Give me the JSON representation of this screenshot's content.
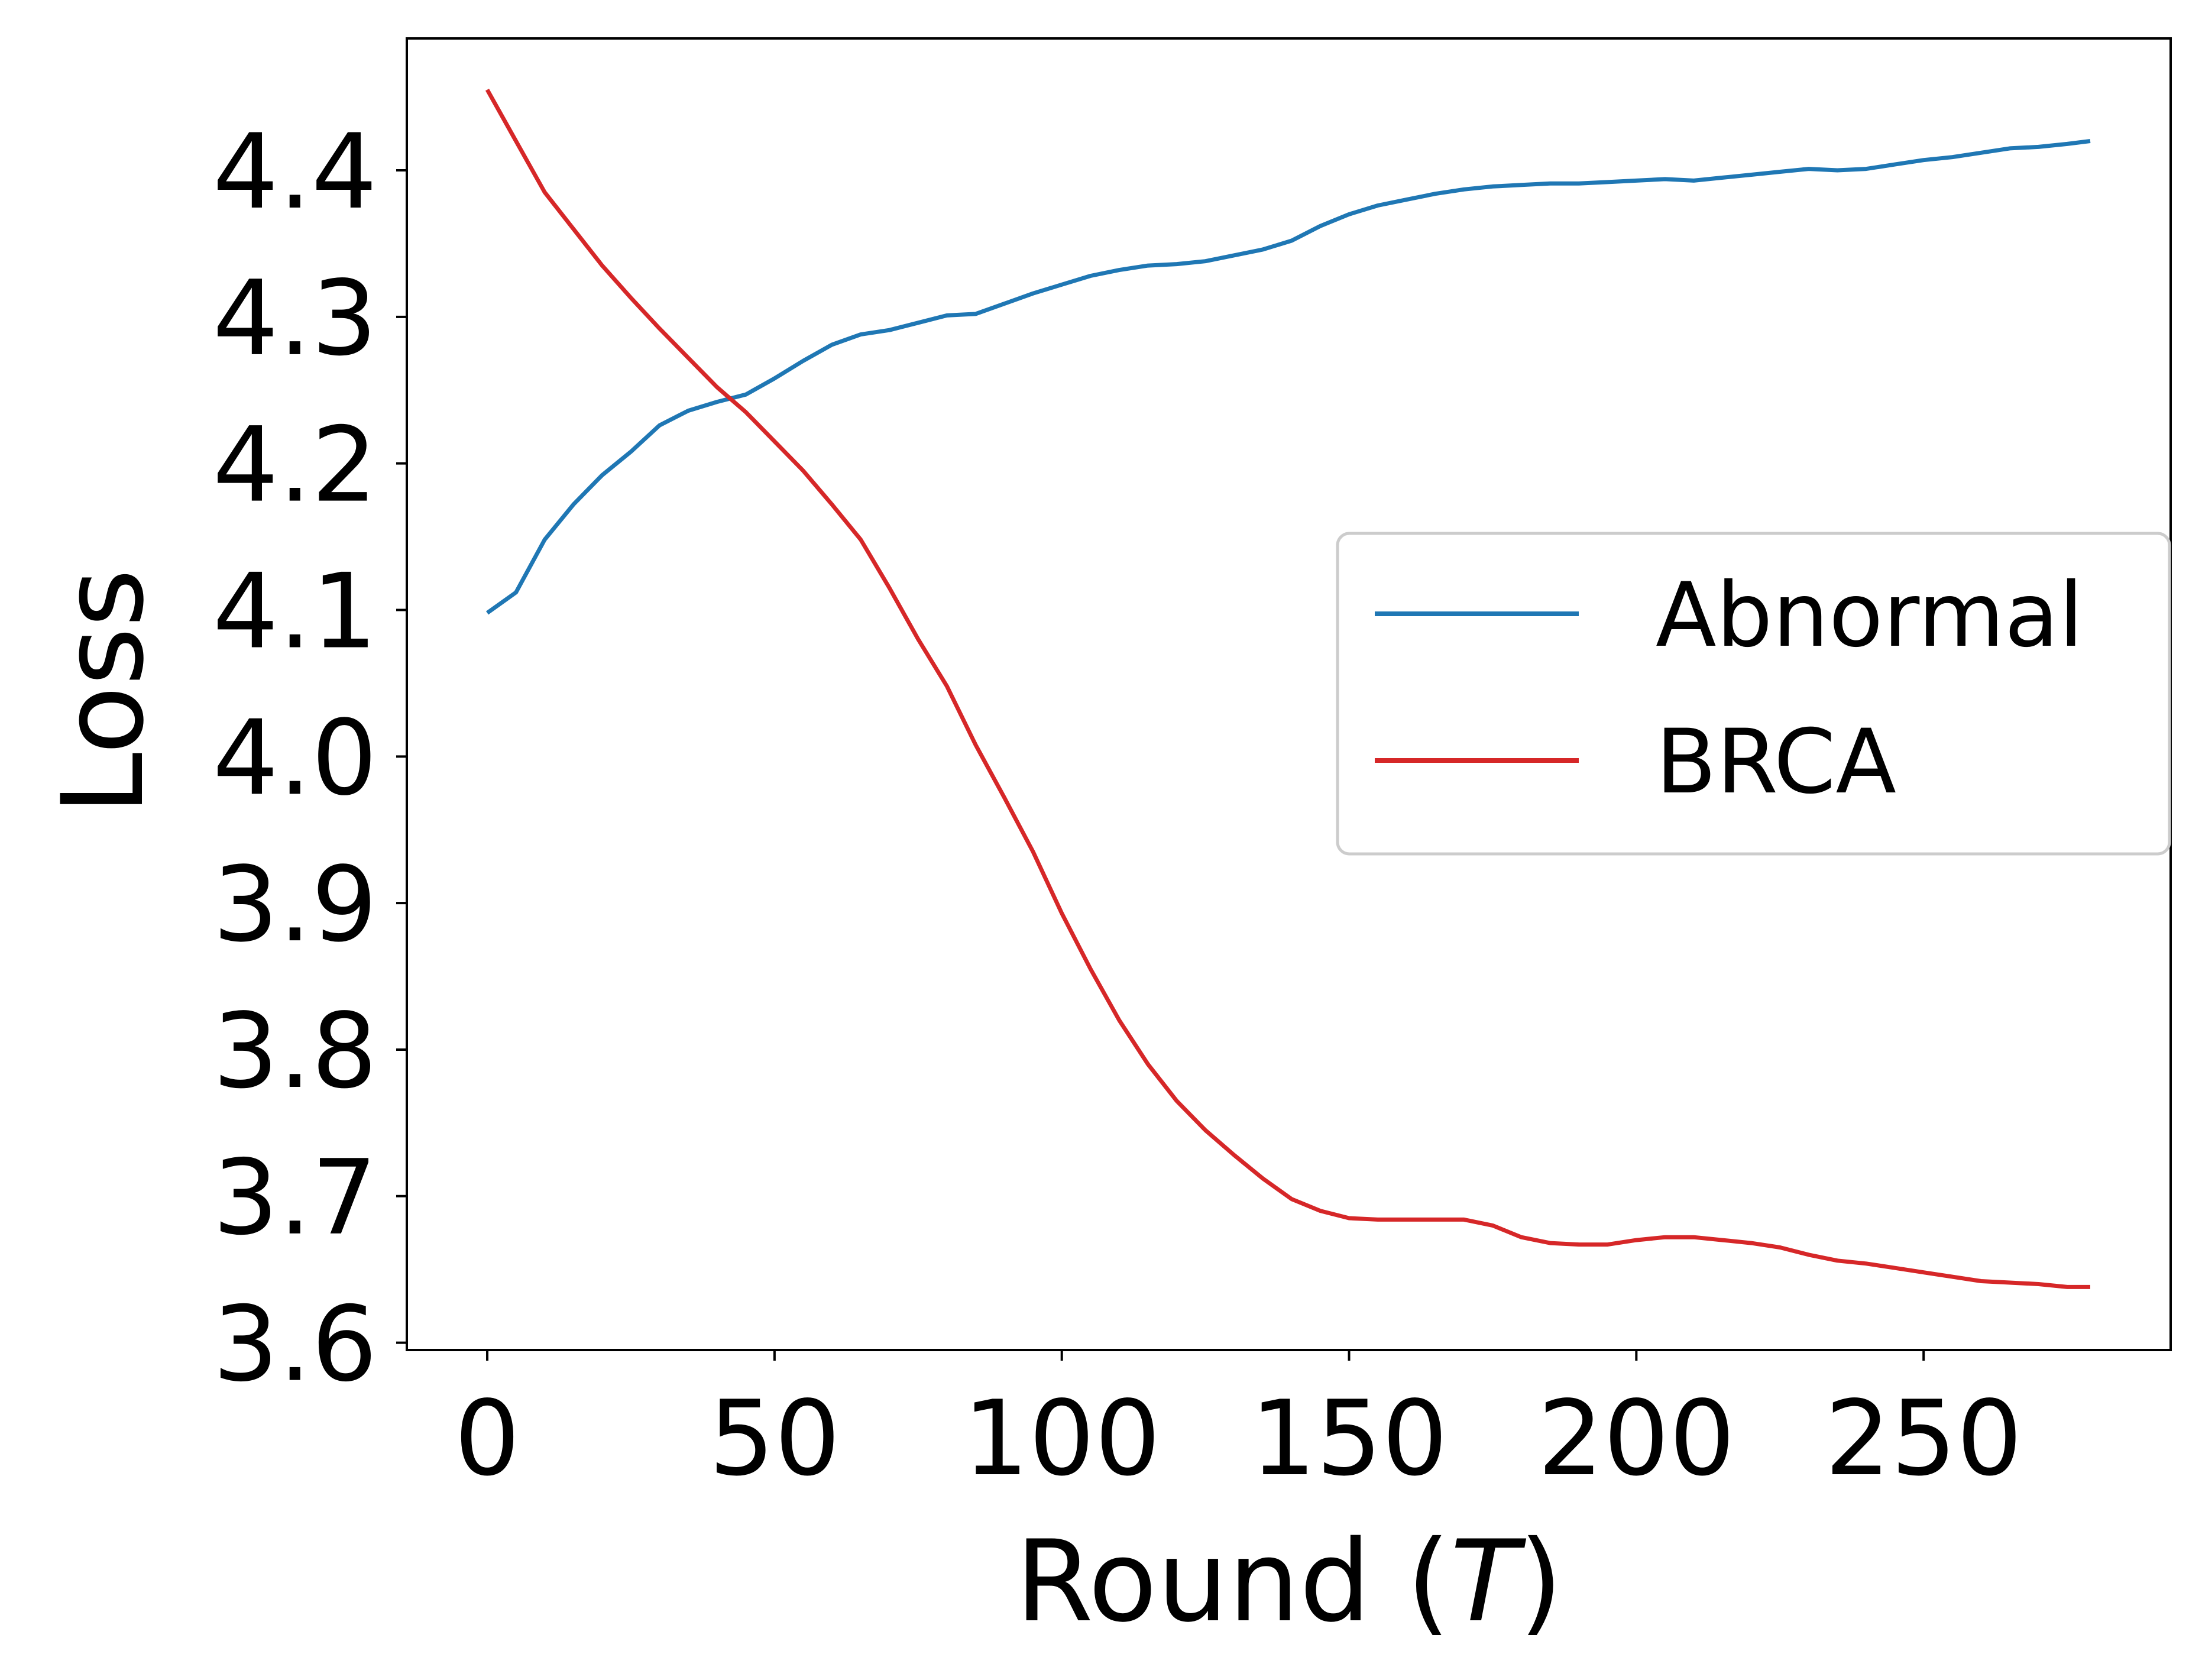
{
  "chart_data": {
    "type": "line",
    "xlabel": "Round",
    "xlabel_var": "T",
    "ylabel": "Loss",
    "xlim": [
      -14,
      293
    ],
    "ylim": [
      3.595,
      4.49
    ],
    "xticks": [
      0,
      50,
      100,
      150,
      200,
      250
    ],
    "yticks": [
      3.6,
      3.7,
      3.8,
      3.9,
      4.0,
      4.1,
      4.2,
      4.3,
      4.4
    ],
    "ytick_labels": [
      "3.6",
      "3.7",
      "3.8",
      "3.9",
      "4.0",
      "4.1",
      "4.2",
      "4.3",
      "4.4"
    ],
    "xtick_labels": [
      "0",
      "50",
      "100",
      "150",
      "200",
      "250"
    ],
    "grid": false,
    "legend_position": "center-right",
    "series": [
      {
        "name": "Abnormal",
        "color": "#1f77b4",
        "x": [
          0,
          5,
          10,
          15,
          20,
          25,
          30,
          35,
          40,
          45,
          50,
          55,
          60,
          65,
          70,
          75,
          80,
          85,
          90,
          95,
          100,
          105,
          110,
          115,
          120,
          125,
          130,
          135,
          140,
          145,
          150,
          155,
          160,
          165,
          170,
          175,
          180,
          185,
          190,
          195,
          200,
          205,
          210,
          215,
          220,
          225,
          230,
          235,
          240,
          245,
          250,
          255,
          260,
          265,
          270,
          275,
          279
        ],
        "y": [
          4.098,
          4.112,
          4.148,
          4.172,
          4.192,
          4.208,
          4.226,
          4.236,
          4.242,
          4.247,
          4.258,
          4.27,
          4.281,
          4.288,
          4.291,
          4.296,
          4.301,
          4.302,
          4.309,
          4.316,
          4.322,
          4.328,
          4.332,
          4.335,
          4.336,
          4.338,
          4.342,
          4.346,
          4.352,
          4.362,
          4.37,
          4.376,
          4.38,
          4.384,
          4.387,
          4.389,
          4.39,
          4.391,
          4.391,
          4.392,
          4.393,
          4.394,
          4.393,
          4.395,
          4.397,
          4.399,
          4.401,
          4.4,
          4.401,
          4.404,
          4.407,
          4.409,
          4.412,
          4.415,
          4.416,
          4.418,
          4.42
        ]
      },
      {
        "name": "BRCA",
        "color": "#d62728",
        "x": [
          0,
          5,
          10,
          15,
          20,
          25,
          30,
          35,
          40,
          45,
          50,
          55,
          60,
          65,
          70,
          75,
          80,
          85,
          90,
          95,
          100,
          105,
          110,
          115,
          120,
          125,
          130,
          135,
          140,
          145,
          150,
          155,
          160,
          165,
          170,
          175,
          180,
          185,
          190,
          195,
          200,
          205,
          210,
          215,
          220,
          225,
          230,
          235,
          240,
          245,
          250,
          255,
          260,
          265,
          270,
          275,
          279
        ],
        "y": [
          4.455,
          4.42,
          4.385,
          4.36,
          4.335,
          4.313,
          4.292,
          4.272,
          4.252,
          4.235,
          4.215,
          4.195,
          4.172,
          4.148,
          4.115,
          4.08,
          4.048,
          4.008,
          3.972,
          3.935,
          3.893,
          3.855,
          3.82,
          3.79,
          3.765,
          3.745,
          3.728,
          3.712,
          3.698,
          3.69,
          3.685,
          3.684,
          3.684,
          3.684,
          3.684,
          3.68,
          3.672,
          3.668,
          3.667,
          3.667,
          3.67,
          3.672,
          3.672,
          3.67,
          3.668,
          3.665,
          3.66,
          3.656,
          3.654,
          3.651,
          3.648,
          3.645,
          3.642,
          3.641,
          3.64,
          3.638,
          3.638
        ]
      }
    ]
  }
}
